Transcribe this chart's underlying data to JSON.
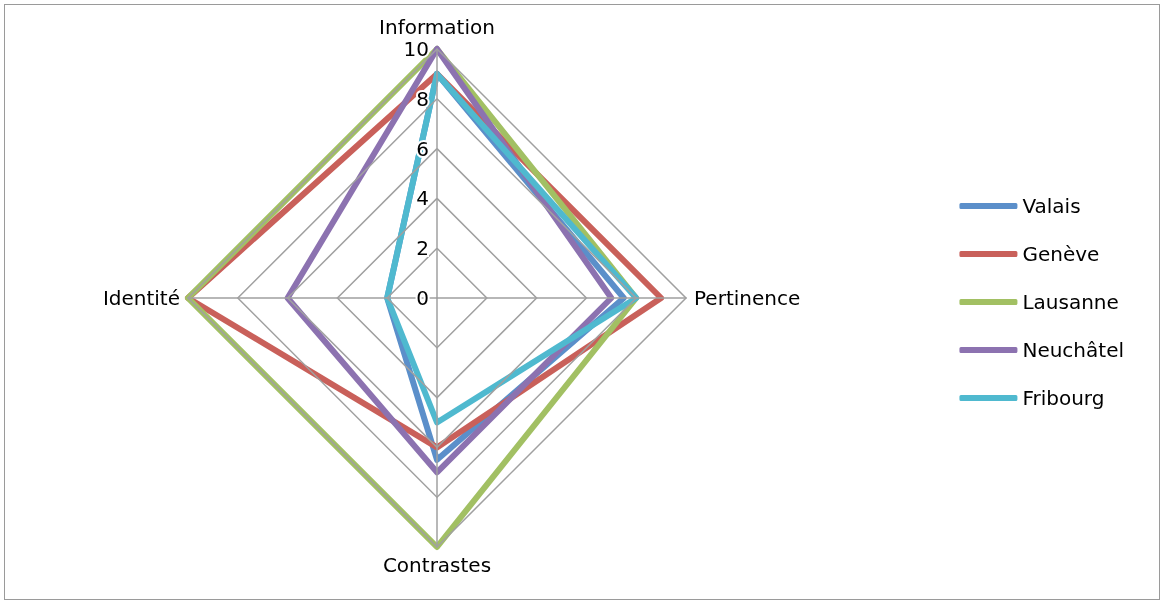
{
  "chart_data": {
    "type": "radar",
    "categories": [
      "Information",
      "Pertinence",
      "Contrastes",
      "Identité"
    ],
    "series": [
      {
        "name": "Valais",
        "color": "#5b8fca",
        "values": [
          9,
          7.5,
          6.5,
          2
        ]
      },
      {
        "name": "Genève",
        "color": "#c9605a",
        "values": [
          9,
          9,
          6,
          10
        ]
      },
      {
        "name": "Lausanne",
        "color": "#a2c063",
        "values": [
          10,
          8,
          10,
          10
        ]
      },
      {
        "name": "Neuchâtel",
        "color": "#8c72b0",
        "values": [
          10,
          7,
          7,
          6
        ]
      },
      {
        "name": "Fribourg",
        "color": "#4fb9cf",
        "values": [
          9,
          8,
          5,
          2
        ]
      }
    ],
    "ylim": [
      0,
      10
    ],
    "yticks": [
      0,
      2,
      4,
      6,
      8,
      10
    ],
    "grid": true,
    "legend": "right",
    "marker": "none",
    "line_style": "solid"
  }
}
